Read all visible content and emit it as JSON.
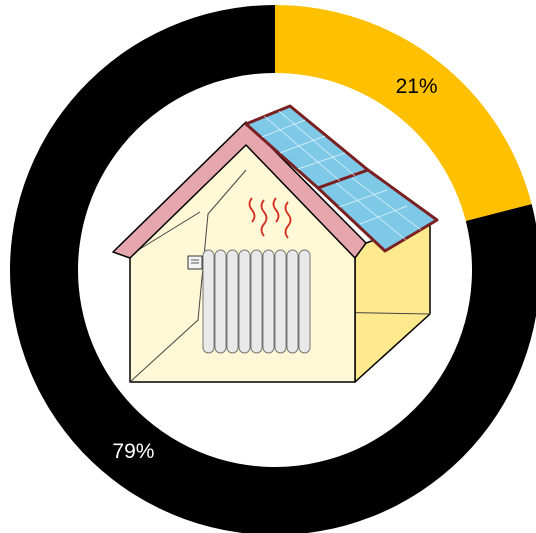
{
  "chart_data": {
    "type": "pie",
    "variant": "donut",
    "categories": [
      "",
      ""
    ],
    "values": [
      21,
      79
    ],
    "labels": [
      "21%",
      "79%"
    ],
    "colors": [
      "#FFC000",
      "#000000"
    ],
    "label_colors": [
      "#000000",
      "#ffffff"
    ],
    "start": "top",
    "direction": "clockwise",
    "center_icon": "house-with-solar-panels-and-radiator-icon"
  }
}
